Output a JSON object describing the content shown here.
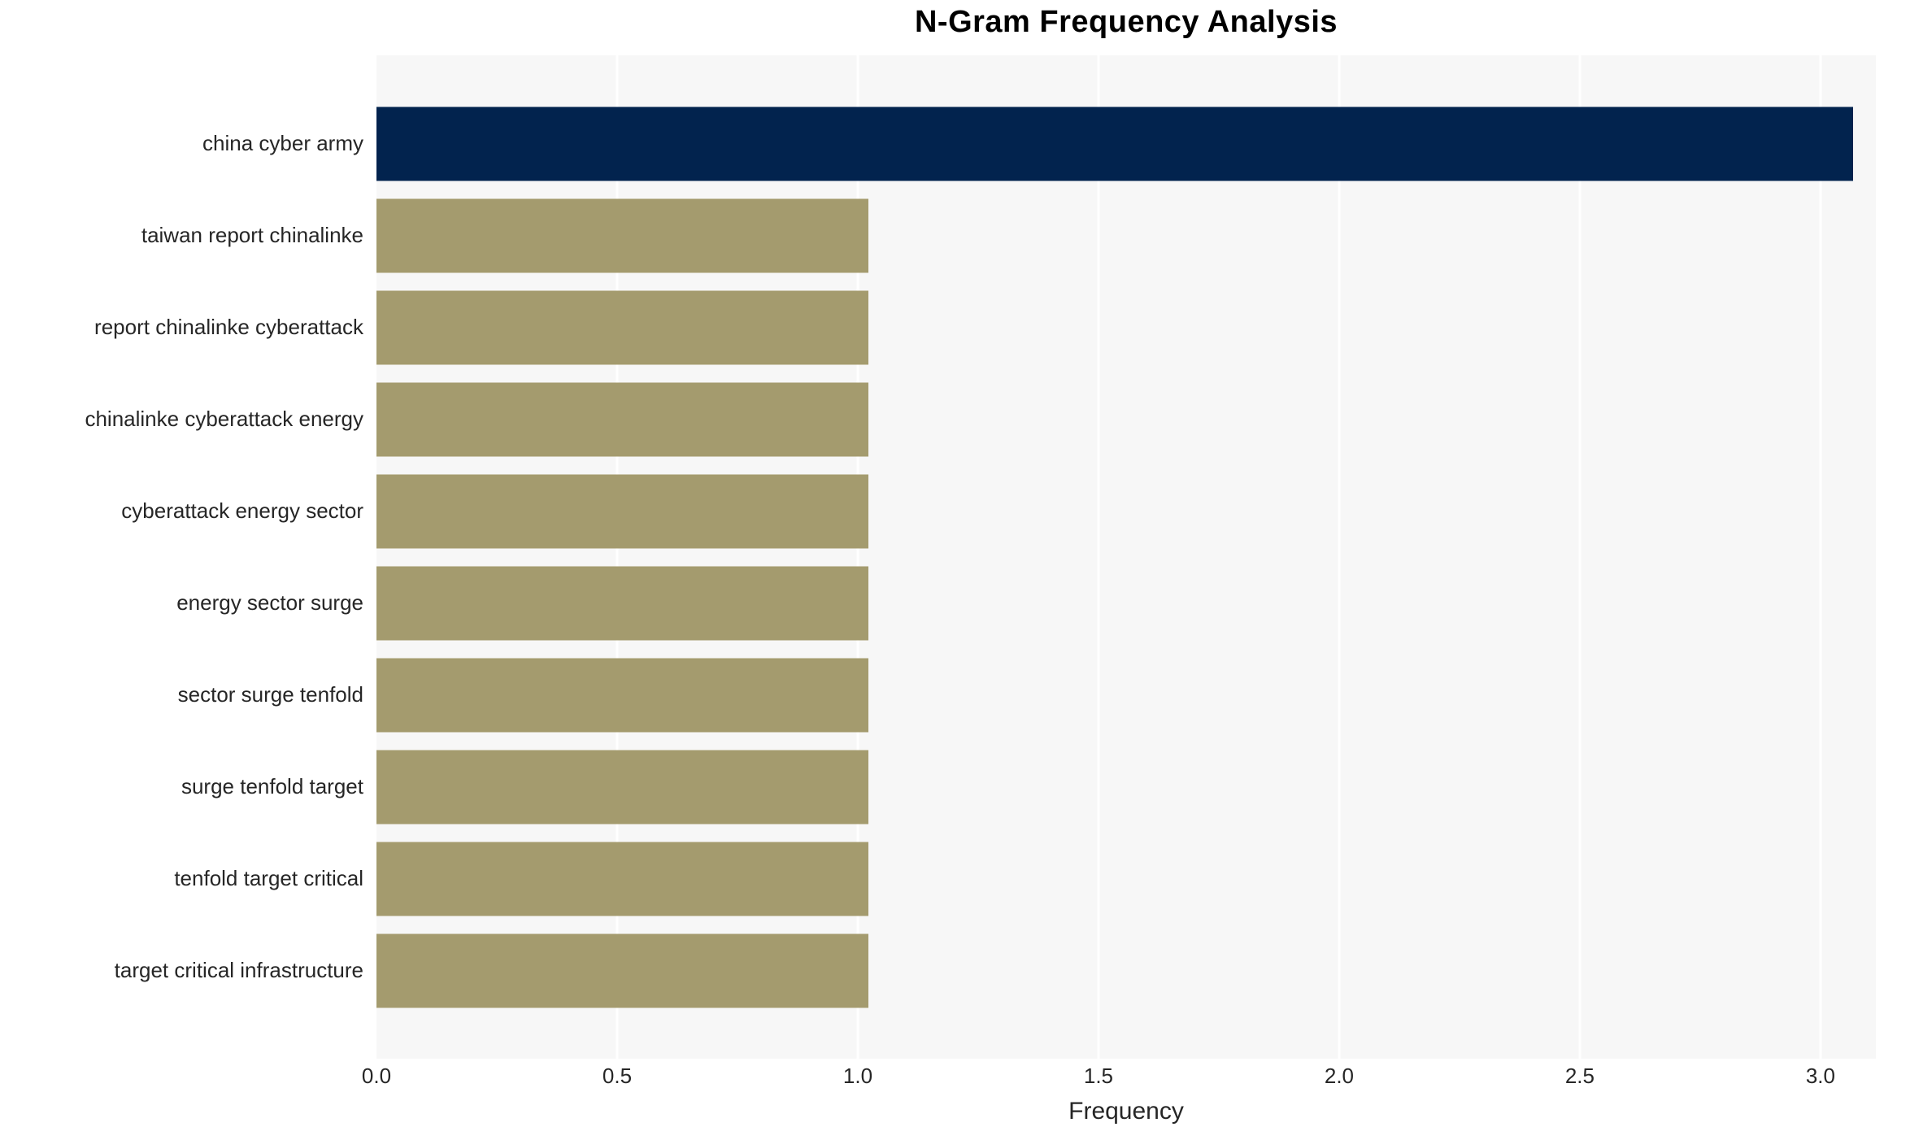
{
  "chart_data": {
    "type": "bar",
    "orientation": "horizontal",
    "title": "N-Gram Frequency Analysis",
    "xlabel": "Frequency",
    "ylabel": "",
    "categories": [
      "china cyber army",
      "taiwan report chinalinke",
      "report chinalinke cyberattack",
      "chinalinke cyberattack energy",
      "cyberattack energy sector",
      "energy sector surge",
      "sector surge tenfold",
      "surge tenfold target",
      "tenfold target critical",
      "target critical infrastructure"
    ],
    "values": [
      3,
      1,
      1,
      1,
      1,
      1,
      1,
      1,
      1,
      1
    ],
    "xticks": [
      {
        "value": 0.0,
        "label": "0.0"
      },
      {
        "value": 0.5,
        "label": "0.5"
      },
      {
        "value": 1.0,
        "label": "1.0"
      },
      {
        "value": 1.5,
        "label": "1.5"
      },
      {
        "value": 2.0,
        "label": "2.0"
      },
      {
        "value": 2.5,
        "label": "2.5"
      },
      {
        "value": 3.0,
        "label": "3.0"
      }
    ],
    "xlim": [
      0,
      3.115
    ],
    "grid": "vertical major gridlines every 0.5, white lines on light gray panel",
    "legend": null,
    "colors": {
      "highlight_bar": "#02234e",
      "default_bar": "#a49b6e",
      "plot_background": "#f7f7f7",
      "grid_line": "#ffffff",
      "tick_text": "#262626",
      "title_text": "#000000"
    }
  }
}
